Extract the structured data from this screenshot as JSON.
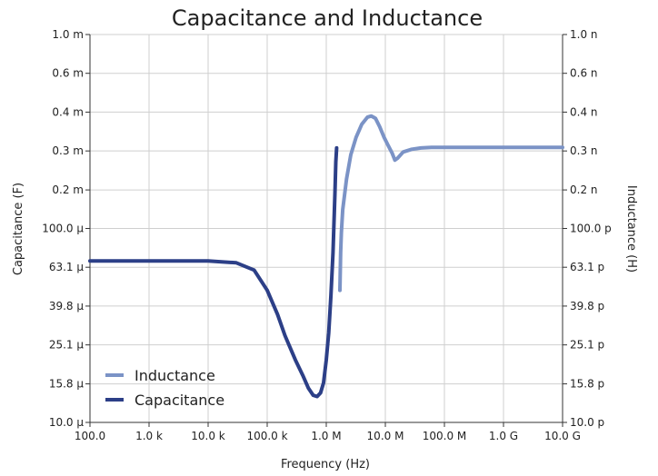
{
  "chart_data": {
    "type": "line",
    "title": "Capacitance and Inductance",
    "xlabel": "Frequency (Hz)",
    "ylabel_left": "Capacitance (F)",
    "ylabel_right": "Inductance (H)",
    "x_scale": "log",
    "y_scale": "log",
    "xlim": [
      100,
      10000000000
    ],
    "ylim_left": [
      1e-05,
      0.001
    ],
    "ylim_right": [
      1e-11,
      1e-09
    ],
    "grid": true,
    "legend_position": "bottom-left",
    "x_ticks": [
      {
        "value": 100,
        "label": "100.0"
      },
      {
        "value": 1000,
        "label": "1.0 k"
      },
      {
        "value": 10000,
        "label": "10.0 k"
      },
      {
        "value": 100000,
        "label": "100.0 k"
      },
      {
        "value": 1000000,
        "label": "1.0 M"
      },
      {
        "value": 10000000,
        "label": "10.0 M"
      },
      {
        "value": 100000000,
        "label": "100.0 M"
      },
      {
        "value": 1000000000,
        "label": "1.0 G"
      },
      {
        "value": 10000000000,
        "label": "10.0 G"
      }
    ],
    "y_ticks_left": [
      {
        "value": 1e-05,
        "label": "10.0 μ"
      },
      {
        "value": 1.58e-05,
        "label": "15.8 μ"
      },
      {
        "value": 2.51e-05,
        "label": "25.1 μ"
      },
      {
        "value": 3.98e-05,
        "label": "39.8 μ"
      },
      {
        "value": 6.31e-05,
        "label": "63.1 μ"
      },
      {
        "value": 0.0001,
        "label": "100.0 μ"
      },
      {
        "value": 0.000158,
        "label": "0.2 m"
      },
      {
        "value": 0.000251,
        "label": "0.3 m"
      },
      {
        "value": 0.000398,
        "label": "0.4 m"
      },
      {
        "value": 0.000631,
        "label": "0.6 m"
      },
      {
        "value": 0.001,
        "label": "1.0 m"
      }
    ],
    "y_ticks_right": [
      {
        "value": 1e-11,
        "label": "10.0 p"
      },
      {
        "value": 1.58e-11,
        "label": "15.8 p"
      },
      {
        "value": 2.51e-11,
        "label": "25.1 p"
      },
      {
        "value": 3.98e-11,
        "label": "39.8 p"
      },
      {
        "value": 6.31e-11,
        "label": "63.1 p"
      },
      {
        "value": 1e-10,
        "label": "100.0 p"
      },
      {
        "value": 1.58e-10,
        "label": "0.2 n"
      },
      {
        "value": 2.51e-10,
        "label": "0.3 n"
      },
      {
        "value": 3.98e-10,
        "label": "0.4 n"
      },
      {
        "value": 6.31e-10,
        "label": "0.6 n"
      },
      {
        "value": 1e-09,
        "label": "1.0 n"
      }
    ],
    "series": [
      {
        "name": "Inductance",
        "axis": "right",
        "color": "#7b93c6",
        "x": [
          1700000,
          1750000,
          1800000,
          1900000,
          2200000,
          2600000,
          3200000,
          4000000,
          5000000,
          5800000,
          6800000,
          8000000,
          9500000,
          11000000,
          13000000,
          14500000,
          16000000,
          20000000,
          28000000,
          40000000,
          60000000,
          100000000,
          1000000000,
          10000000000
        ],
        "y": [
          4.8e-11,
          7.5e-11,
          9.5e-11,
          1.25e-10,
          1.8e-10,
          2.4e-10,
          2.95e-10,
          3.45e-10,
          3.75e-10,
          3.8e-10,
          3.7e-10,
          3.35e-10,
          2.95e-10,
          2.7e-10,
          2.45e-10,
          2.25e-10,
          2.3e-10,
          2.48e-10,
          2.56e-10,
          2.6e-10,
          2.62e-10,
          2.62e-10,
          2.62e-10,
          2.62e-10
        ]
      },
      {
        "name": "Capacitance",
        "axis": "left",
        "color": "#2c3f87",
        "x": [
          100,
          1000,
          10000,
          30000,
          60000,
          100000,
          150000,
          200000,
          300000,
          400000,
          500000,
          600000,
          700000,
          800000,
          900000,
          1000000,
          1100000,
          1200000,
          1300000,
          1400000,
          1450000,
          1500000
        ],
        "y": [
          6.8e-05,
          6.8e-05,
          6.8e-05,
          6.65e-05,
          6.1e-05,
          4.8e-05,
          3.6e-05,
          2.8e-05,
          2.1e-05,
          1.75e-05,
          1.5e-05,
          1.38e-05,
          1.36e-05,
          1.42e-05,
          1.6e-05,
          2.1e-05,
          2.9e-05,
          4.5e-05,
          7.5e-05,
          0.00015,
          0.00022,
          0.00026
        ]
      }
    ]
  }
}
